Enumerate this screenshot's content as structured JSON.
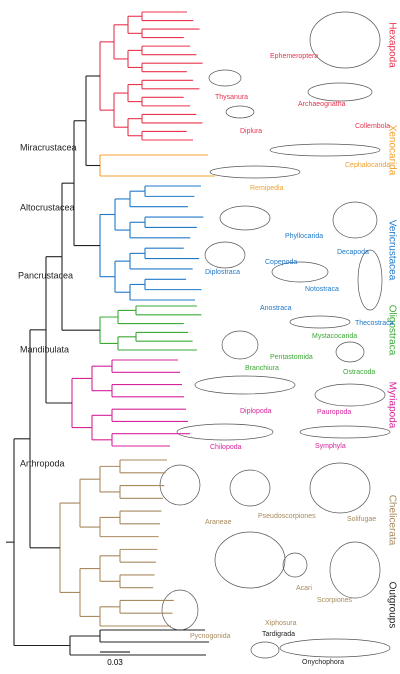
{
  "clades": [
    {
      "label": "Hexapoda",
      "color": "#e8344e",
      "taxa": [
        "Ephemeroptera",
        "Thysanura",
        "Archaeognatha",
        "Diplura",
        "Collembola"
      ]
    },
    {
      "label": "Xenocarida",
      "color": "#f0a030",
      "taxa": [
        "Cephalocarida",
        "Remipedia"
      ]
    },
    {
      "label": "Vericrustacea",
      "color": "#1f78c8",
      "taxa": [
        "Phyllocarida",
        "Decapoda",
        "Copepoda",
        "Notostraca",
        "Diplostraca",
        "Anostraca",
        "Thecostraca"
      ]
    },
    {
      "label": "Oligostraca",
      "color": "#3aaa35",
      "taxa": [
        "Mystacocarida",
        "Pentastomida",
        "Branchiura",
        "Ostracoda"
      ]
    },
    {
      "label": "Myriapoda",
      "color": "#d6249b",
      "taxa": [
        "Diplopoda",
        "Pauropoda",
        "Chilopoda",
        "Symphyla"
      ]
    },
    {
      "label": "Chelicerata",
      "color": "#a88a5e",
      "taxa": [
        "Araneae",
        "Pseudoscorpiones",
        "Solifugae",
        "Acari",
        "Scorpiones",
        "Xiphosura",
        "Pycnogonida"
      ]
    },
    {
      "label": "Outgroups",
      "color": "#222222",
      "taxa": [
        "Tardigrada",
        "Onychophora"
      ]
    }
  ],
  "internal_nodes": [
    "Miracrustacea",
    "Altocrustacea",
    "Pancrustacea",
    "Mandibulata",
    "Arthropoda"
  ],
  "scale_bar": "0.03"
}
